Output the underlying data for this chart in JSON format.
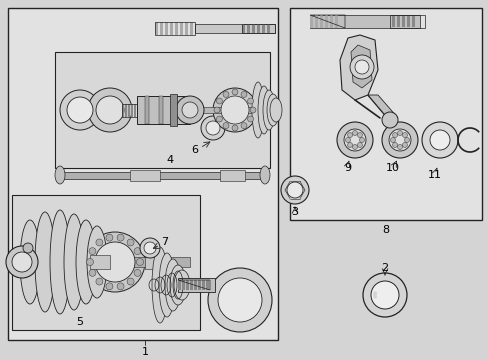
{
  "bg_color": "#d4d4d4",
  "fg_color": "#222222",
  "box_fill": "#e8e8e8",
  "inner_fill": "#d8d8d8",
  "part_fill": "#cccccc",
  "white": "#f5f5f5",
  "font_size": 8,
  "label_font_size": 8
}
